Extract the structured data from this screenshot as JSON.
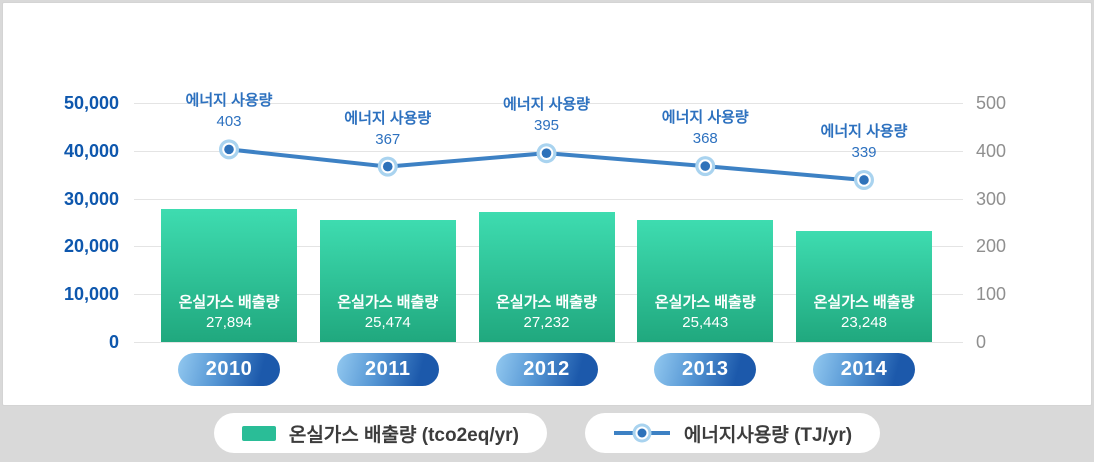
{
  "chart_data": {
    "type": "bar",
    "overlay_type": "line",
    "categories": [
      "2010",
      "2011",
      "2012",
      "2013",
      "2014"
    ],
    "series": [
      {
        "name": "온실가스 배출량 (tco2eq/yr)",
        "kind": "bar",
        "axis": "left",
        "point_label": "온실가스 배출량",
        "values": [
          27894,
          25474,
          27232,
          25443,
          23248
        ],
        "value_labels": [
          "27,894",
          "25,474",
          "27,232",
          "25,443",
          "23,248"
        ]
      },
      {
        "name": "에너지사용량 (TJ/yr)",
        "kind": "line",
        "axis": "right",
        "point_label": "에너지 사용량",
        "values": [
          403,
          367,
          395,
          368,
          339
        ],
        "value_labels": [
          "403",
          "367",
          "395",
          "368",
          "339"
        ]
      }
    ],
    "left_axis": {
      "min": 0,
      "max": 50000,
      "tick_step": 10000,
      "tick_labels": [
        "0",
        "10,000",
        "20,000",
        "30,000",
        "40,000",
        "50,000"
      ]
    },
    "right_axis": {
      "min": 0,
      "max": 500,
      "tick_step": 100,
      "tick_labels": [
        "0",
        "100",
        "200",
        "300",
        "400",
        "500"
      ]
    },
    "grid": true,
    "legend_position": "bottom"
  },
  "legend": {
    "items": [
      {
        "label": "온실가스 배출량 (tco2eq/yr)",
        "swatch": "bar"
      },
      {
        "label": "에너지사용량 (TJ/yr)",
        "swatch": "line"
      }
    ]
  },
  "colors": {
    "bar_gradient_top": "#3edcb0",
    "bar_gradient_bottom": "#20a87e",
    "line": "#3d81c4",
    "marker_outer": "#a9d3ef",
    "marker_mid": "#ffffff",
    "marker_inner": "#2e72ba",
    "left_axis_label": "#0e57ad",
    "right_axis_label": "#8f8f8f",
    "point_label_text": "#2d71bf",
    "year_pill_gradient_left": "#93c9f0",
    "year_pill_gradient_right": "#1c59ab",
    "legend_swatch": "#2abd97",
    "gridline": "#e4e4e4",
    "page_background": "#d9d9d9",
    "card_background": "#ffffff",
    "card_border": "#d4d4d4",
    "bar_text": "#ffffff",
    "legend_text": "#3c3c3c"
  }
}
